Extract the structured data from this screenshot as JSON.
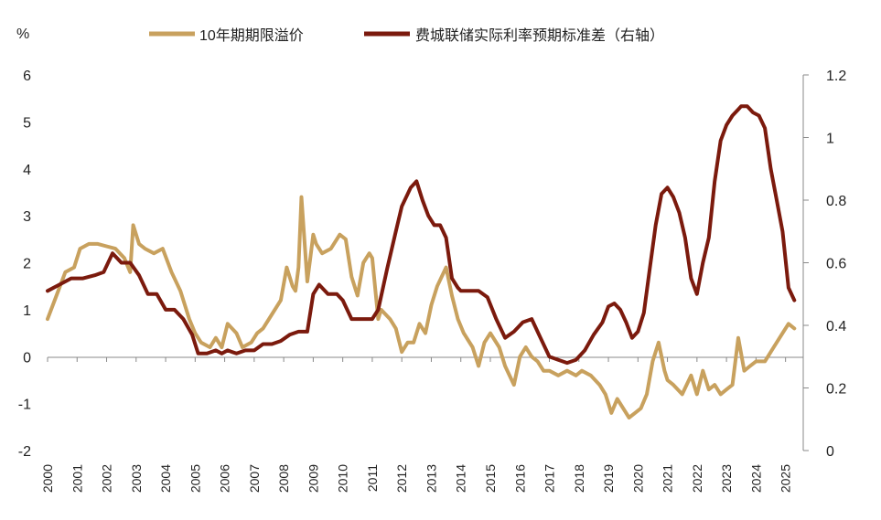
{
  "chart_data": {
    "type": "line",
    "left_axis": {
      "unit_label": "%",
      "ylim": [
        -2,
        6
      ],
      "ticks": [
        "-2",
        "-1",
        "0",
        "1",
        "2",
        "3",
        "4",
        "5",
        "6"
      ]
    },
    "right_axis": {
      "ylim": [
        0,
        1.2
      ],
      "ticks": [
        "0",
        "0.2",
        "0.4",
        "0.6",
        "0.8",
        "1",
        "1.2"
      ]
    },
    "x_ticks": [
      "2000",
      "2001",
      "2002",
      "2003",
      "2004",
      "2005",
      "2006",
      "2007",
      "2008",
      "2009",
      "2010",
      "2011",
      "2012",
      "2013",
      "2014",
      "2015",
      "2016",
      "2017",
      "2018",
      "2019",
      "2020",
      "2021",
      "2022",
      "2023",
      "2024",
      "2025"
    ],
    "legend_position": "top",
    "grid": false,
    "series": [
      {
        "name": "10年期期限溢价",
        "axis": "left",
        "color": "#C8A15E",
        "x": [
          2000.0,
          2000.3,
          2000.6,
          2000.9,
          2001.1,
          2001.4,
          2001.7,
          2002.0,
          2002.3,
          2002.6,
          2002.8,
          2002.9,
          2003.1,
          2003.3,
          2003.6,
          2003.9,
          2004.2,
          2004.5,
          2004.8,
          2005.0,
          2005.2,
          2005.5,
          2005.7,
          2005.9,
          2006.1,
          2006.4,
          2006.6,
          2006.9,
          2007.1,
          2007.3,
          2007.6,
          2007.9,
          2008.1,
          2008.3,
          2008.4,
          2008.5,
          2008.6,
          2008.8,
          2008.9,
          2009.0,
          2009.1,
          2009.3,
          2009.6,
          2009.9,
          2010.1,
          2010.3,
          2010.5,
          2010.7,
          2010.9,
          2011.0,
          2011.2,
          2011.3,
          2011.6,
          2011.8,
          2012.0,
          2012.2,
          2012.4,
          2012.6,
          2012.8,
          2013.0,
          2013.2,
          2013.5,
          2013.7,
          2013.9,
          2014.1,
          2014.4,
          2014.6,
          2014.8,
          2015.0,
          2015.3,
          2015.5,
          2015.8,
          2016.0,
          2016.2,
          2016.4,
          2016.6,
          2016.8,
          2017.0,
          2017.3,
          2017.6,
          2017.9,
          2018.1,
          2018.4,
          2018.7,
          2018.9,
          2019.1,
          2019.3,
          2019.5,
          2019.7,
          2019.9,
          2020.1,
          2020.3,
          2020.5,
          2020.7,
          2020.9,
          2021.0,
          2021.2,
          2021.5,
          2021.8,
          2022.0,
          2022.2,
          2022.4,
          2022.6,
          2022.8,
          2023.0,
          2023.2,
          2023.4,
          2023.6,
          2023.8,
          2024.0,
          2024.3,
          2024.6,
          2024.9,
          2025.1,
          2025.3
        ],
        "y": [
          0.8,
          1.3,
          1.8,
          1.9,
          2.3,
          2.4,
          2.4,
          2.35,
          2.3,
          2.1,
          1.8,
          2.8,
          2.4,
          2.3,
          2.2,
          2.3,
          1.8,
          1.4,
          0.8,
          0.5,
          0.3,
          0.2,
          0.4,
          0.2,
          0.7,
          0.5,
          0.2,
          0.3,
          0.5,
          0.6,
          0.9,
          1.2,
          1.9,
          1.5,
          1.4,
          1.9,
          3.4,
          1.6,
          2.1,
          2.6,
          2.4,
          2.2,
          2.3,
          2.6,
          2.5,
          1.7,
          1.3,
          2.0,
          2.2,
          2.1,
          0.8,
          1.0,
          0.8,
          0.6,
          0.1,
          0.3,
          0.3,
          0.7,
          0.5,
          1.1,
          1.5,
          1.9,
          1.3,
          0.8,
          0.5,
          0.2,
          -0.2,
          0.3,
          0.5,
          0.2,
          -0.2,
          -0.6,
          0.0,
          0.2,
          0.0,
          -0.1,
          -0.3,
          -0.3,
          -0.4,
          -0.3,
          -0.4,
          -0.3,
          -0.4,
          -0.6,
          -0.8,
          -1.2,
          -0.9,
          -1.1,
          -1.3,
          -1.2,
          -1.1,
          -0.8,
          -0.1,
          0.3,
          -0.3,
          -0.5,
          -0.6,
          -0.8,
          -0.4,
          -0.8,
          -0.3,
          -0.7,
          -0.6,
          -0.8,
          -0.7,
          -0.6,
          0.4,
          -0.3,
          -0.2,
          -0.1,
          -0.1,
          0.2,
          0.5,
          0.7,
          0.6
        ]
      },
      {
        "name": "费城联储实际利率预期标准差（右轴）",
        "axis": "right",
        "color": "#7B1A0D",
        "x": [
          2000.0,
          2000.4,
          2000.8,
          2001.2,
          2001.6,
          2001.9,
          2002.2,
          2002.5,
          2002.8,
          2003.1,
          2003.4,
          2003.7,
          2004.0,
          2004.3,
          2004.6,
          2004.9,
          2005.1,
          2005.4,
          2005.7,
          2005.9,
          2006.1,
          2006.4,
          2006.7,
          2007.0,
          2007.3,
          2007.6,
          2007.9,
          2008.2,
          2008.5,
          2008.8,
          2009.0,
          2009.2,
          2009.5,
          2009.8,
          2010.0,
          2010.3,
          2010.5,
          2010.8,
          2011.0,
          2011.2,
          2011.5,
          2011.8,
          2012.0,
          2012.3,
          2012.5,
          2012.7,
          2012.9,
          2013.1,
          2013.3,
          2013.5,
          2013.7,
          2013.9,
          2014.0,
          2014.3,
          2014.6,
          2014.9,
          2015.2,
          2015.5,
          2015.8,
          2016.1,
          2016.4,
          2016.7,
          2017.0,
          2017.3,
          2017.6,
          2017.9,
          2018.2,
          2018.5,
          2018.8,
          2019.0,
          2019.2,
          2019.4,
          2019.6,
          2019.8,
          2020.0,
          2020.2,
          2020.4,
          2020.6,
          2020.8,
          2021.0,
          2021.2,
          2021.4,
          2021.6,
          2021.8,
          2022.0,
          2022.2,
          2022.4,
          2022.6,
          2022.8,
          2023.0,
          2023.2,
          2023.4,
          2023.5,
          2023.7,
          2023.9,
          2024.1,
          2024.3,
          2024.5,
          2024.7,
          2024.9,
          2025.1,
          2025.3
        ],
        "y": [
          0.51,
          0.53,
          0.55,
          0.55,
          0.56,
          0.57,
          0.63,
          0.6,
          0.6,
          0.56,
          0.5,
          0.5,
          0.45,
          0.45,
          0.42,
          0.37,
          0.31,
          0.31,
          0.32,
          0.31,
          0.32,
          0.31,
          0.32,
          0.32,
          0.34,
          0.34,
          0.35,
          0.37,
          0.38,
          0.38,
          0.5,
          0.53,
          0.5,
          0.5,
          0.48,
          0.42,
          0.42,
          0.42,
          0.42,
          0.45,
          0.58,
          0.7,
          0.78,
          0.84,
          0.86,
          0.8,
          0.75,
          0.72,
          0.72,
          0.68,
          0.55,
          0.52,
          0.51,
          0.51,
          0.51,
          0.49,
          0.42,
          0.36,
          0.38,
          0.41,
          0.42,
          0.36,
          0.3,
          0.29,
          0.28,
          0.29,
          0.32,
          0.37,
          0.41,
          0.46,
          0.47,
          0.45,
          0.41,
          0.36,
          0.38,
          0.44,
          0.58,
          0.72,
          0.82,
          0.84,
          0.81,
          0.76,
          0.68,
          0.55,
          0.5,
          0.6,
          0.68,
          0.86,
          0.99,
          1.04,
          1.07,
          1.09,
          1.1,
          1.1,
          1.08,
          1.07,
          1.03,
          0.9,
          0.8,
          0.7,
          0.52,
          0.48
        ]
      }
    ]
  }
}
